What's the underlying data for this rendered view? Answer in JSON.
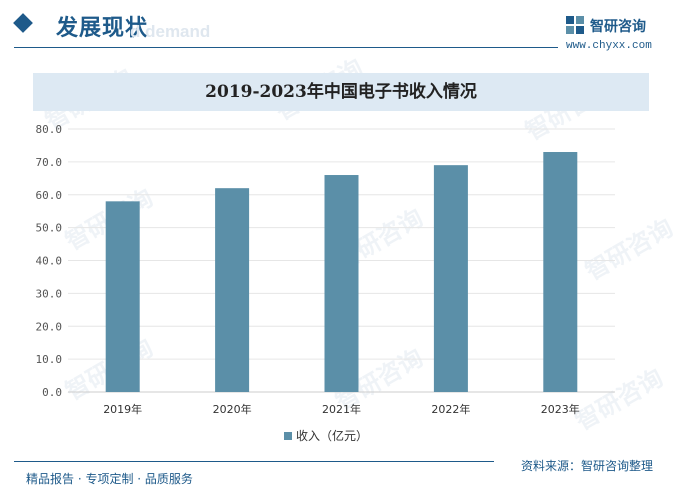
{
  "header": {
    "section_title": "发展现状",
    "ghost_text": "d demand",
    "brand_name": "智研咨询",
    "brand_url": "www.chyxx.com"
  },
  "footer": {
    "left": "精品报告 · 专项定制 · 品质服务",
    "right": "资料来源：智研咨询整理"
  },
  "watermark_text": "智研咨询",
  "colors": {
    "bar": "#5b8fa8",
    "accent": "#1e5a8a",
    "banner": "#dde9f3"
  },
  "chart_data": {
    "type": "bar",
    "title": "2019-2023年中国电子书收入情况",
    "categories": [
      "2019年",
      "2020年",
      "2021年",
      "2022年",
      "2023年"
    ],
    "series": [
      {
        "name": "收入（亿元）",
        "values": [
          58.0,
          62.0,
          66.0,
          69.0,
          73.0
        ]
      }
    ],
    "ylim": [
      0,
      80
    ],
    "yticks": [
      "0.0",
      "10.0",
      "20.0",
      "30.0",
      "40.0",
      "50.0",
      "60.0",
      "70.0",
      "80.0"
    ],
    "grid": true,
    "legend_position": "bottom"
  }
}
